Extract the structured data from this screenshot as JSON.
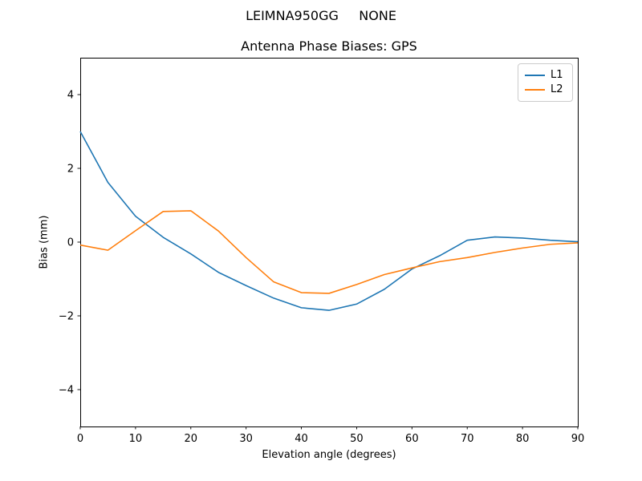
{
  "chart_data": {
    "type": "line",
    "suptitle": "LEIMNA950GG     NONE",
    "title": "Antenna Phase Biases: GPS",
    "xlabel": "Elevation angle (degrees)",
    "ylabel": "Bias (mm)",
    "xlim": [
      0,
      90
    ],
    "ylim": [
      -5,
      5
    ],
    "x_ticks": [
      0,
      10,
      20,
      30,
      40,
      50,
      60,
      70,
      80,
      90
    ],
    "y_ticks": [
      -4,
      -2,
      0,
      2,
      4
    ],
    "grid": false,
    "legend_position": "upper right",
    "background_color": "#ffffff",
    "axis_color": "#000000",
    "x": [
      0,
      5,
      10,
      15,
      20,
      25,
      30,
      35,
      40,
      45,
      50,
      55,
      60,
      65,
      70,
      75,
      80,
      85,
      90
    ],
    "series": [
      {
        "name": "L1",
        "color": "#1f77b4",
        "values": [
          3.0,
          1.62,
          0.7,
          0.13,
          -0.32,
          -0.82,
          -1.18,
          -1.52,
          -1.78,
          -1.85,
          -1.68,
          -1.28,
          -0.73,
          -0.37,
          0.05,
          0.14,
          0.11,
          0.05,
          0.01
        ]
      },
      {
        "name": "L2",
        "color": "#ff7f0e",
        "values": [
          -0.08,
          -0.22,
          0.31,
          0.83,
          0.85,
          0.3,
          -0.42,
          -1.08,
          -1.37,
          -1.39,
          -1.15,
          -0.88,
          -0.7,
          -0.53,
          -0.42,
          -0.28,
          -0.16,
          -0.06,
          -0.02
        ]
      }
    ]
  }
}
